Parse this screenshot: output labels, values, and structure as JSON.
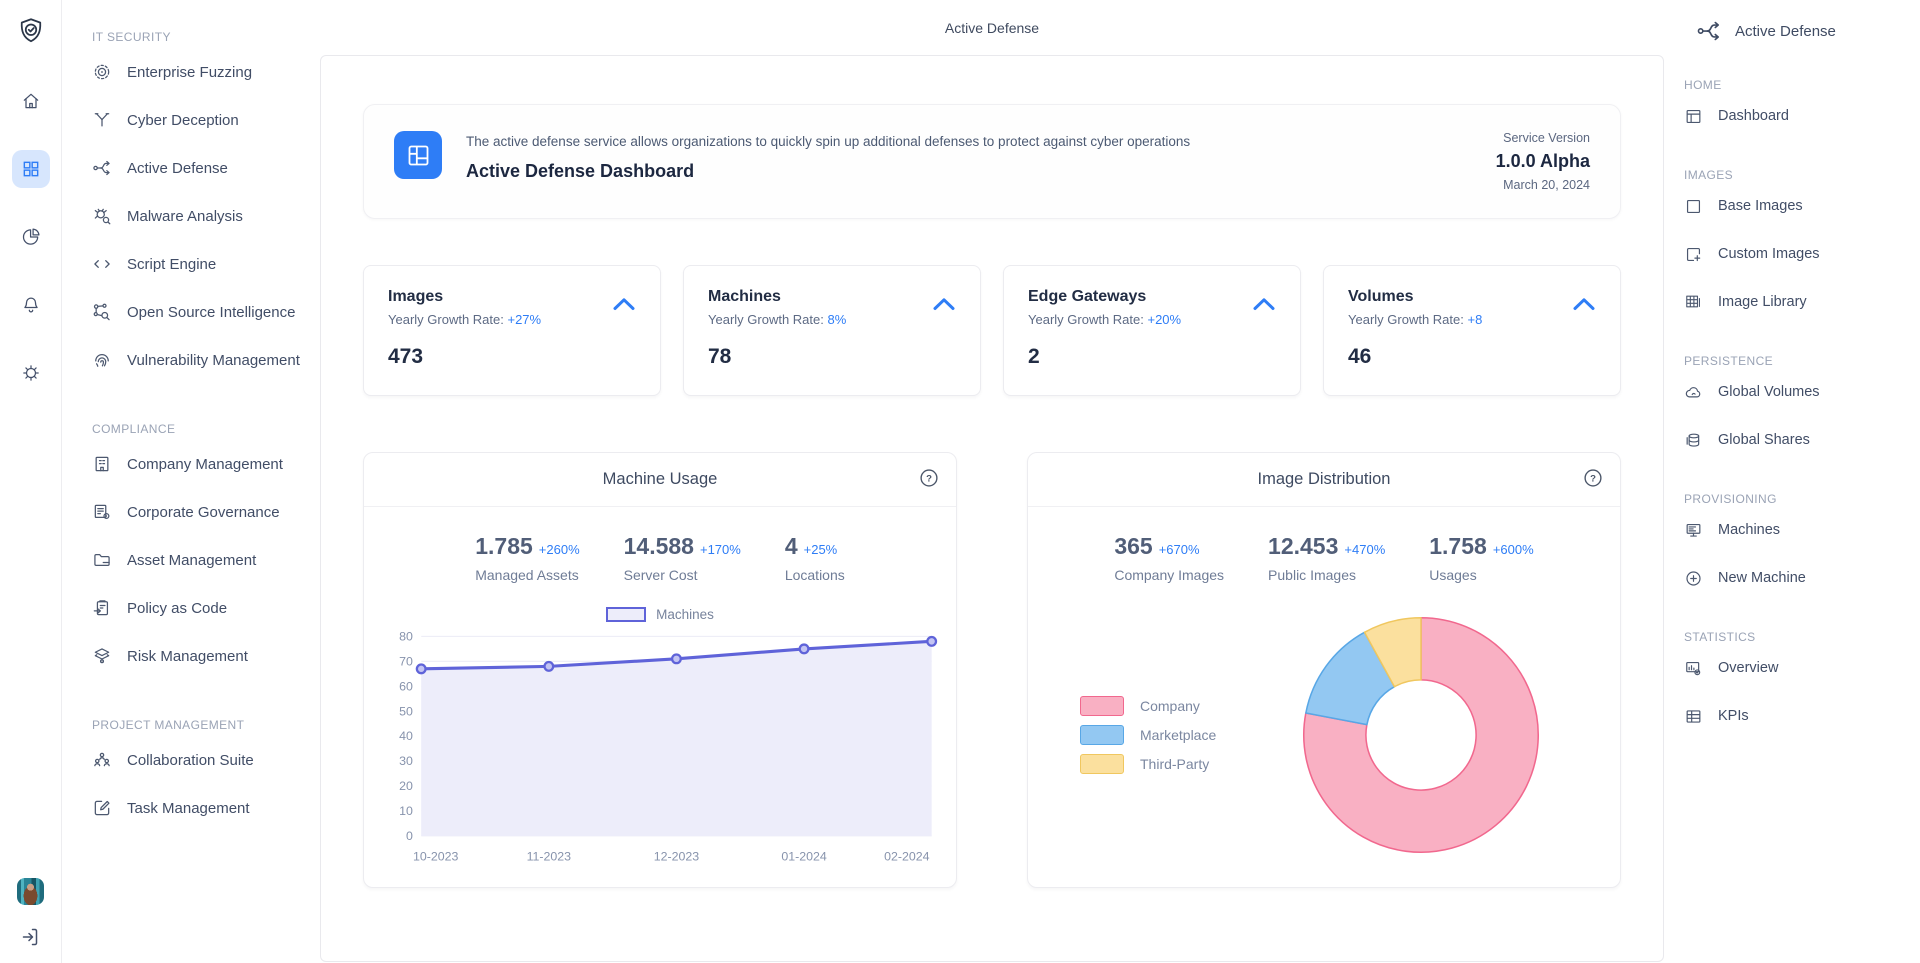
{
  "app": {
    "page_title": "Active Defense"
  },
  "colors": {
    "accent_blue": "#2E7DF6",
    "active_rail_bg": "#D7E6FD",
    "text_dark": "#222D44",
    "text_gray": "#6F7C96",
    "border": "#ECECF0"
  },
  "rail": {
    "icons": [
      {
        "name": "logo-shield-check-icon"
      },
      {
        "name": "home-icon"
      },
      {
        "name": "apps-grid-icon",
        "active": true
      },
      {
        "name": "pie-chart-icon"
      },
      {
        "name": "bell-icon"
      },
      {
        "name": "gear-icon"
      }
    ],
    "bottom": [
      {
        "name": "user-avatar"
      },
      {
        "name": "logout-icon"
      }
    ]
  },
  "sidebar": {
    "sections": [
      {
        "title": "IT SECURITY",
        "items": [
          {
            "label": "Enterprise Fuzzing",
            "icon": "target-rings-icon"
          },
          {
            "label": "Cyber Deception",
            "icon": "branch-icon"
          },
          {
            "label": "Active Defense",
            "icon": "flow-split-icon"
          },
          {
            "label": "Malware Analysis",
            "icon": "bug-search-icon"
          },
          {
            "label": "Script Engine",
            "icon": "code-icon"
          },
          {
            "label": "Open Source Intelligence",
            "icon": "network-search-icon"
          },
          {
            "label": "Vulnerability Management",
            "icon": "fingerprint-icon"
          }
        ]
      },
      {
        "title": "COMPLIANCE",
        "items": [
          {
            "label": "Company Management",
            "icon": "building-icon"
          },
          {
            "label": "Corporate Governance",
            "icon": "document-gear-icon"
          },
          {
            "label": "Asset Management",
            "icon": "folder-icon"
          },
          {
            "label": "Policy as Code",
            "icon": "clipboard-arrow-icon"
          },
          {
            "label": "Risk Management",
            "icon": "layers-eye-icon"
          }
        ]
      },
      {
        "title": "PROJECT MANAGEMENT",
        "items": [
          {
            "label": "Collaboration Suite",
            "icon": "people-icon"
          },
          {
            "label": "Task Management",
            "icon": "edit-square-icon"
          }
        ]
      }
    ]
  },
  "banner": {
    "description": "The active defense service allows organizations to quickly spin up additional defenses to protect against cyber operations",
    "title": "Active Defense Dashboard",
    "service_version_label": "Service Version",
    "version": "1.0.0 Alpha",
    "date": "March 20, 2024",
    "icon": "dashboard-tile-icon"
  },
  "stat_cards": [
    {
      "title": "Images",
      "growth_label": "Yearly Growth Rate:",
      "growth_value": "+27%",
      "value": "473"
    },
    {
      "title": "Machines",
      "growth_label": "Yearly Growth Rate:",
      "growth_value": "8%",
      "value": "78"
    },
    {
      "title": "Edge Gateways",
      "growth_label": "Yearly Growth Rate:",
      "growth_value": "+20%",
      "value": "2"
    },
    {
      "title": "Volumes",
      "growth_label": "Yearly Growth Rate:",
      "growth_value": "+8",
      "value": "46"
    }
  ],
  "machine_usage": {
    "title": "Machine Usage",
    "stats": [
      {
        "value": "1.785",
        "delta": "+260%",
        "label": "Managed Assets"
      },
      {
        "value": "14.588",
        "delta": "+170%",
        "label": "Server Cost"
      },
      {
        "value": "4",
        "delta": "+25%",
        "label": "Locations"
      }
    ],
    "legend_label": "Machines"
  },
  "image_distribution": {
    "title": "Image Distribution",
    "stats": [
      {
        "value": "365",
        "delta": "+670%",
        "label": "Company Images"
      },
      {
        "value": "12.453",
        "delta": "+470%",
        "label": "Public Images"
      },
      {
        "value": "1.758",
        "delta": "+600%",
        "label": "Usages"
      }
    ]
  },
  "chart_data": [
    {
      "id": "machine_usage_line",
      "type": "line",
      "title": "Machine Usage",
      "legend_entries": [
        "Machines"
      ],
      "legend_position": "top",
      "categories": [
        "10-2023",
        "11-2023",
        "12-2023",
        "01-2024",
        "02-2024"
      ],
      "series": [
        {
          "name": "Machines",
          "values": [
            67,
            68,
            71,
            75,
            78
          ]
        }
      ],
      "xlabel": "",
      "ylabel": "",
      "ylim": [
        0,
        80
      ],
      "ytick_step": 10,
      "grid": true,
      "line_color": "#5F63D9",
      "area_fill": "#EDEDFA",
      "marker_fill": "#C3C4F3"
    },
    {
      "id": "image_distribution_donut",
      "type": "pie",
      "title": "Image Distribution",
      "labels": [
        "Company",
        "Marketplace",
        "Third-Party"
      ],
      "values_percent": [
        78,
        14,
        8
      ],
      "colors": [
        "#F9B0C3",
        "#93C8F2",
        "#FBE09E"
      ],
      "border_colors": [
        "#F1688E",
        "#58A7E6",
        "#F0C75F"
      ],
      "donut_hole_ratio": 0.47,
      "start_angle_deg": 0,
      "direction": "clockwise",
      "legend_position": "left"
    }
  ],
  "rightbar": {
    "title": "Active Defense",
    "sections": [
      {
        "title": "HOME",
        "items": [
          {
            "label": "Dashboard",
            "icon": "dashboard-layout-icon"
          }
        ]
      },
      {
        "title": "IMAGES",
        "items": [
          {
            "label": "Base Images",
            "icon": "square-icon"
          },
          {
            "label": "Custom Images",
            "icon": "square-plus-icon"
          },
          {
            "label": "Image Library",
            "icon": "grid-table-icon"
          }
        ]
      },
      {
        "title": "PERSISTENCE",
        "items": [
          {
            "label": "Global Volumes",
            "icon": "cloud-icon"
          },
          {
            "label": "Global Shares",
            "icon": "database-icon"
          }
        ]
      },
      {
        "title": "PROVISIONING",
        "items": [
          {
            "label": "Machines",
            "icon": "server-icon"
          },
          {
            "label": "New Machine",
            "icon": "plus-circle-icon"
          }
        ]
      },
      {
        "title": "STATISTICS",
        "items": [
          {
            "label": "Overview",
            "icon": "report-chart-icon"
          },
          {
            "label": "KPIs",
            "icon": "table-icon"
          }
        ]
      }
    ]
  }
}
